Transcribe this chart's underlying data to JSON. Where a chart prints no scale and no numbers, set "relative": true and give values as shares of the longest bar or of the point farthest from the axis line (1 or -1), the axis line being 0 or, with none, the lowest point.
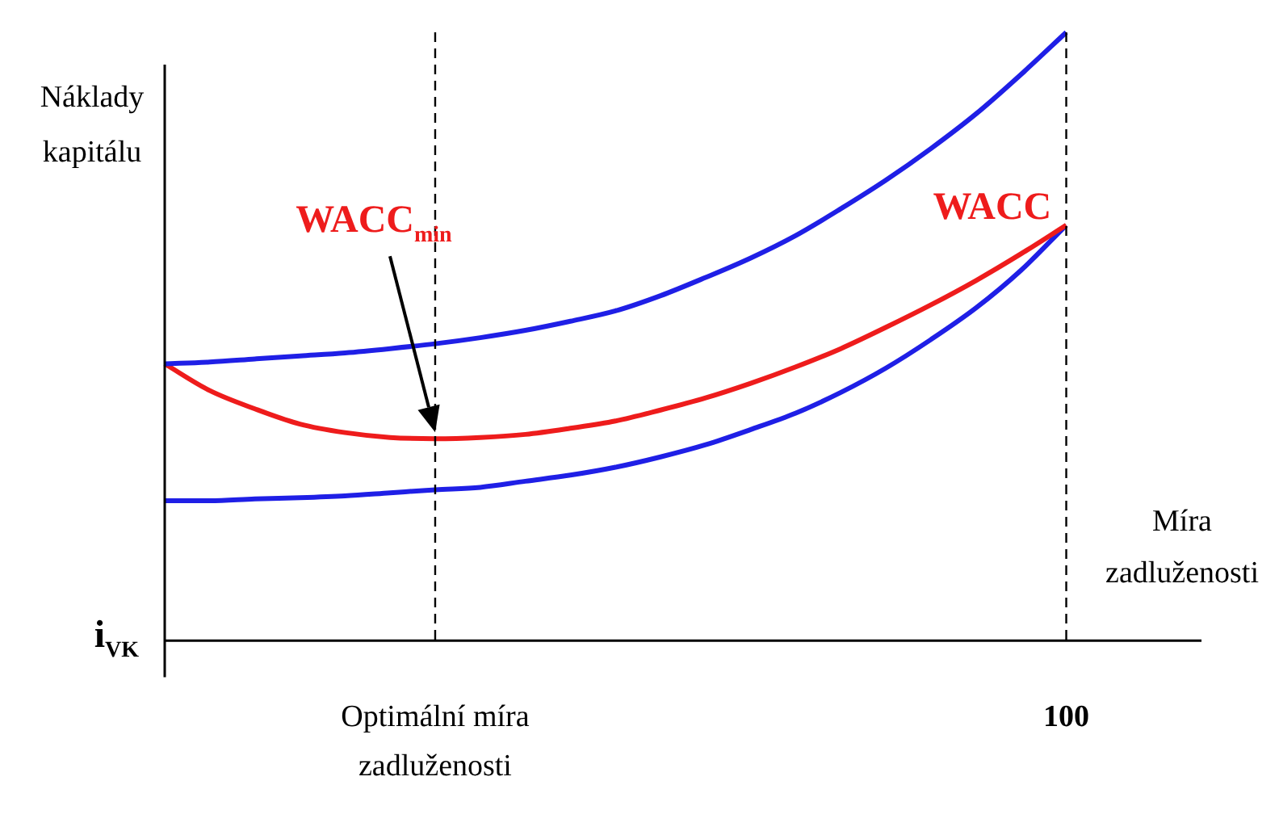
{
  "chart_data": {
    "type": "line",
    "relative": true,
    "xlabel": "Míra zadluženosti",
    "ylabel": "Náklady kapitálu",
    "categories": [
      null,
      null,
      null,
      null,
      null,
      null,
      "Optimální míra zadluženosti",
      null,
      null,
      null,
      null,
      null,
      null,
      null,
      null,
      null,
      null,
      null,
      null,
      null,
      "100",
      null,
      null,
      null
    ],
    "grid": false,
    "legend": false,
    "marker": "none",
    "line_style": "solid",
    "series": [
      {
        "color": "#1f1fe6",
        "values": [
          0.455,
          0.458,
          0.463,
          0.468,
          0.473,
          0.48,
          0.488,
          0.498,
          0.51,
          0.525,
          0.542,
          0.567,
          0.597,
          0.629,
          0.666,
          0.71,
          0.757,
          0.809,
          0.866,
          0.931,
          1,
          null,
          null,
          null
        ]
      },
      {
        "name": "WACC",
        "color": "#ee1c1c",
        "values": [
          0.455,
          0.411,
          0.381,
          0.356,
          0.342,
          0.334,
          0.332,
          0.334,
          0.339,
          0.349,
          0.361,
          0.379,
          0.399,
          0.423,
          0.45,
          0.48,
          0.515,
          0.552,
          0.592,
          0.636,
          0.683,
          null,
          null,
          null
        ]
      },
      {
        "color": "#1f1fe6",
        "values": [
          0.23,
          0.23,
          0.233,
          0.235,
          0.238,
          0.243,
          0.248,
          0.252,
          0.262,
          0.272,
          0.285,
          0.302,
          0.322,
          0.347,
          0.374,
          0.408,
          0.448,
          0.495,
          0.547,
          0.609,
          0.683,
          null,
          null,
          null
        ]
      }
    ],
    "ref_lines": [
      {
        "axis": "x",
        "value": "Optimální míra zadluženosti",
        "line_style": "dashed",
        "color": "#000000"
      },
      {
        "axis": "x",
        "value": "100",
        "line_style": "dashed",
        "color": "#000000"
      }
    ],
    "annotations": [
      "WACC$_{min}$",
      "i$_{VK}$"
    ]
  }
}
